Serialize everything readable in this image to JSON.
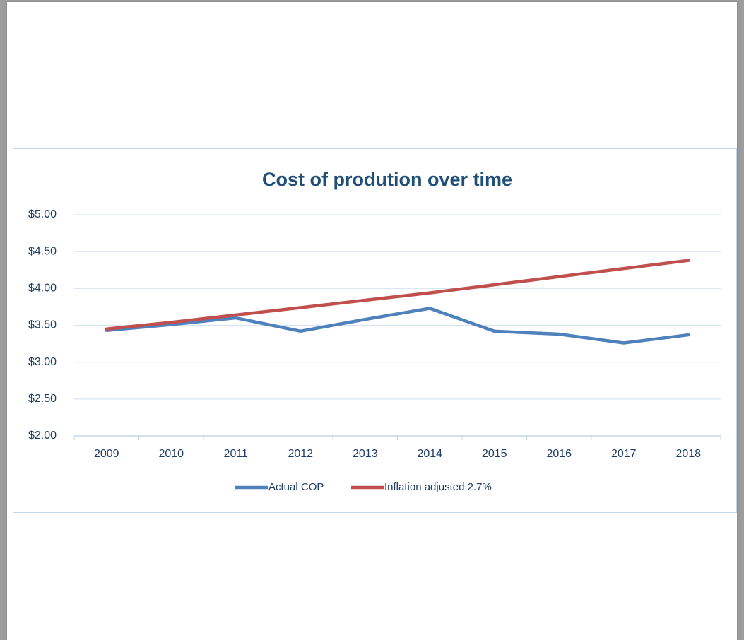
{
  "chart_data": {
    "type": "line",
    "title": "Cost of prodution over time",
    "categories": [
      "2009",
      "2010",
      "2011",
      "2012",
      "2013",
      "2014",
      "2015",
      "2016",
      "2017",
      "2018"
    ],
    "series": [
      {
        "name": "Actual COP",
        "color": "#4f81bd",
        "values": [
          3.43,
          3.51,
          3.6,
          3.42,
          3.58,
          3.73,
          3.42,
          3.38,
          3.26,
          3.37
        ]
      },
      {
        "name": "Inflation adjusted 2.7%",
        "color": "#c0504d",
        "values": [
          3.45,
          3.54,
          3.64,
          3.74,
          3.84,
          3.94,
          4.05,
          4.16,
          4.27,
          4.38
        ]
      }
    ],
    "ylim": [
      2,
      5
    ],
    "yticks": [
      {
        "value": 2,
        "label": "$2.00"
      },
      {
        "value": 2.5,
        "label": "$2.50"
      },
      {
        "value": 3,
        "label": "$3.00"
      },
      {
        "value": 3.5,
        "label": "$3.50"
      },
      {
        "value": 4,
        "label": "$4.00"
      },
      {
        "value": 4.5,
        "label": "$4.50"
      },
      {
        "value": 5,
        "label": "$5.00"
      }
    ],
    "grid": true,
    "legend": "bottom"
  }
}
